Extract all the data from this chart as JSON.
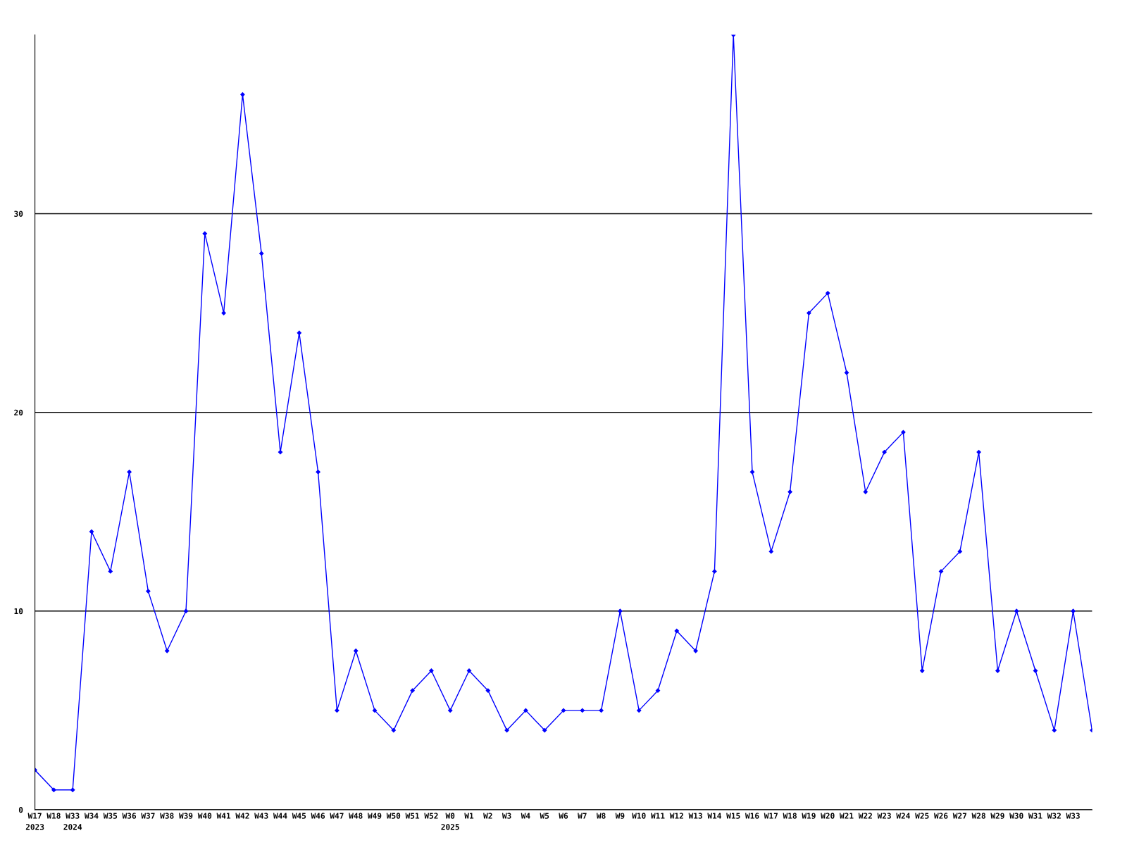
{
  "chart_data": {
    "type": "line",
    "categories": [
      "W17\n2023",
      "W18",
      "W33\n2024",
      "W34",
      "W35",
      "W36",
      "W37",
      "W38",
      "W39",
      "W40",
      "W41",
      "W42",
      "W43",
      "W44",
      "W45",
      "W46",
      "W47",
      "W48",
      "W49",
      "W50",
      "W51",
      "W52",
      "W0\n2025",
      "W1",
      "W2",
      "W3",
      "W4",
      "W5",
      "W6",
      "W7",
      "W8",
      "W9",
      "W10",
      "W11",
      "W12",
      "W13",
      "W14",
      "W15",
      "W16",
      "W17",
      "W18",
      "W19",
      "W20",
      "W21",
      "W22",
      "W23",
      "W24",
      "W25",
      "W26",
      "W27",
      "W28",
      "W29",
      "W30",
      "W31",
      "W32",
      "W33",
      null
    ],
    "series": [
      {
        "color": "#0000ff",
        "values": [
          2,
          1,
          1,
          14,
          12,
          17,
          11,
          8,
          10,
          29,
          25,
          36,
          28,
          18,
          24,
          17,
          5,
          8,
          5,
          4,
          6,
          7,
          5,
          7,
          6,
          4,
          5,
          4,
          5,
          5,
          5,
          10,
          5,
          6,
          9,
          8,
          12,
          39,
          17,
          13,
          16,
          25,
          26,
          22,
          16,
          18,
          19,
          7,
          12,
          13,
          18,
          7,
          10,
          7,
          4,
          10,
          4
        ]
      }
    ],
    "ylim": [
      0,
      39
    ],
    "yticks": [
      0,
      10,
      20,
      30
    ],
    "grid": "y",
    "marker": "diamond",
    "line_style": "solid",
    "legend": false
  }
}
